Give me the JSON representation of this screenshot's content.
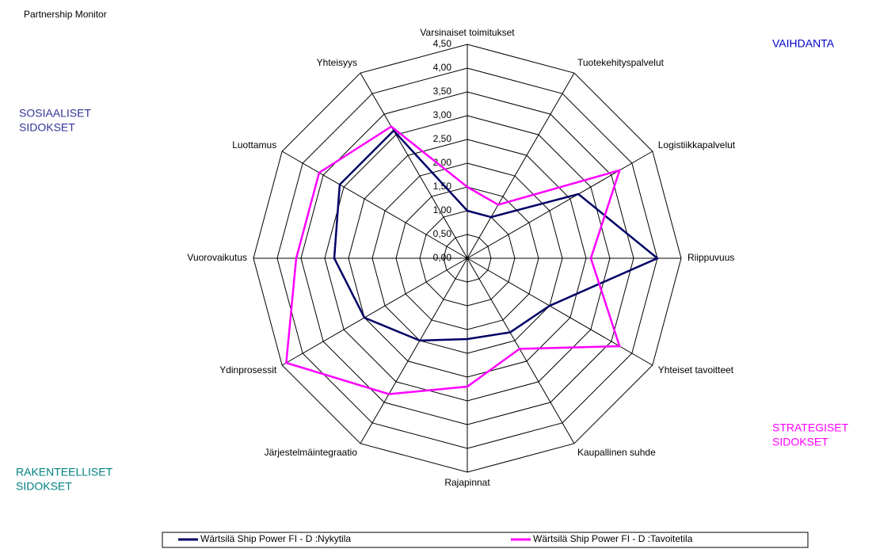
{
  "chart_data": {
    "type": "radar",
    "title": "Partnership Monitor",
    "categories": [
      "Varsinaiset toimitukset",
      "Tuotekehityspalvelut",
      "Logistiikkapalvelut",
      "Riippuvuus",
      "Yhteiset tavoitteet",
      "Kaupallinen suhde",
      "Rajapinnat",
      "Järjestelmäintegraatio",
      "Ydinprosessit",
      "Vuorovaikutus",
      "Luottamus",
      "Yhteisyys"
    ],
    "series": [
      {
        "name": "Wärtsilä Ship Power FI - D :Nykytila",
        "color": "#000066",
        "values": [
          1.0,
          1.0,
          2.7,
          4.0,
          2.0,
          1.8,
          1.7,
          2.0,
          2.5,
          2.8,
          3.1,
          3.1
        ]
      },
      {
        "name": "Wärtsilä Ship Power FI - D :Tavoitetila",
        "color": "#ff00ff",
        "values": [
          1.5,
          1.3,
          3.7,
          2.6,
          3.7,
          2.2,
          2.7,
          3.3,
          4.4,
          3.6,
          3.6,
          3.2
        ]
      }
    ],
    "rlim": [
      0,
      4.5
    ],
    "rticks": [
      {
        "value": 0,
        "label": "0,00"
      },
      {
        "value": 0.5,
        "label": "0,50"
      },
      {
        "value": 1,
        "label": "1,00"
      },
      {
        "value": 1.5,
        "label": "1,50"
      },
      {
        "value": 2,
        "label": "2,00"
      },
      {
        "value": 2.5,
        "label": "2,50"
      },
      {
        "value": 3,
        "label": "3,00"
      },
      {
        "value": 3.5,
        "label": "3,50"
      },
      {
        "value": 4,
        "label": "4,00"
      },
      {
        "value": 4.5,
        "label": "4,50"
      }
    ],
    "annotations": [
      {
        "lines": [
          "VAIHDANTA"
        ],
        "color": "#0000cc"
      },
      {
        "lines": [
          "SOSIAALISET",
          "SIDOKSET"
        ],
        "color": "#333399"
      },
      {
        "lines": [
          "STRATEGISET",
          "SIDOKSET"
        ],
        "color": "#ff00ff"
      },
      {
        "lines": [
          "RAKENTEELLISET",
          "SIDOKSET"
        ],
        "color": "#008080"
      }
    ],
    "legend": "bottom"
  }
}
